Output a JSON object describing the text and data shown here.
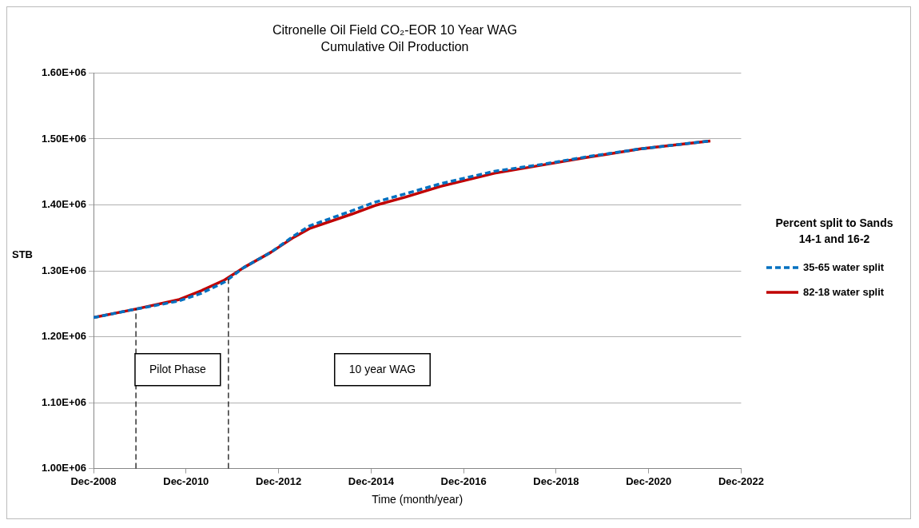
{
  "chart_data": {
    "type": "line",
    "title": "Citronelle Oil Field CO₂-EOR 10 Year WAG",
    "subtitle": "Cumulative Oil Production",
    "xlabel": "Time (month/year)",
    "ylabel": "STB",
    "legend_title": "Percent split to Sands 14-1 and 16-2",
    "x": [
      "2008-12",
      "2009-11",
      "2010-10",
      "2011-04",
      "2011-10",
      "2012-03",
      "2012-10",
      "2013-04",
      "2013-08",
      "2014-07",
      "2015-01",
      "2015-09",
      "2016-06",
      "2017-08",
      "2018-09",
      "2019-08",
      "2020-10",
      "2022-04"
    ],
    "series": [
      {
        "name": "35-65 water split",
        "color": "#0070c0",
        "line_style": "dashed",
        "values": [
          1229000,
          1242000,
          1254000,
          1266000,
          1283000,
          1305000,
          1328000,
          1353000,
          1368000,
          1391000,
          1404000,
          1417000,
          1432000,
          1451000,
          1462000,
          1473000,
          1485000,
          1497000
        ]
      },
      {
        "name": "82-18 water split",
        "color": "#c00000",
        "line_style": "solid",
        "values": [
          1229000,
          1242000,
          1256000,
          1270000,
          1286000,
          1305000,
          1328000,
          1351000,
          1364000,
          1386000,
          1399000,
          1412000,
          1428000,
          1448000,
          1461000,
          1472000,
          1485000,
          1497000
        ]
      }
    ],
    "xlim": [
      "2008-12",
      "2022-12"
    ],
    "xticks": [
      {
        "value": "2008-12",
        "label": "Dec-2008"
      },
      {
        "value": "2010-12",
        "label": "Dec-2010"
      },
      {
        "value": "2012-12",
        "label": "Dec-2012"
      },
      {
        "value": "2014-12",
        "label": "Dec-2014"
      },
      {
        "value": "2016-12",
        "label": "Dec-2016"
      },
      {
        "value": "2018-12",
        "label": "Dec-2018"
      },
      {
        "value": "2020-12",
        "label": "Dec-2020"
      },
      {
        "value": "2022-12",
        "label": "Dec-2022"
      }
    ],
    "ylim": [
      1000000,
      1600000
    ],
    "yticks": [
      {
        "value": 1000000,
        "label": "1.00E+06"
      },
      {
        "value": 1100000,
        "label": "1.10E+06"
      },
      {
        "value": 1200000,
        "label": "1.20E+06"
      },
      {
        "value": 1300000,
        "label": "1.30E+06"
      },
      {
        "value": 1400000,
        "label": "1.40E+06"
      },
      {
        "value": 1500000,
        "label": "1.50E+06"
      },
      {
        "value": 1600000,
        "label": "1.60E+06"
      }
    ],
    "ref_lines": [
      {
        "axis": "x",
        "value": "2009-11",
        "color": "#000000",
        "line_style": "dashed"
      },
      {
        "axis": "x",
        "value": "2011-11",
        "color": "#000000",
        "line_style": "dashed"
      }
    ],
    "annotations": [
      "Pilot Phase",
      "10 year WAG"
    ],
    "grid": "y",
    "legend": "right",
    "marker": "none"
  }
}
